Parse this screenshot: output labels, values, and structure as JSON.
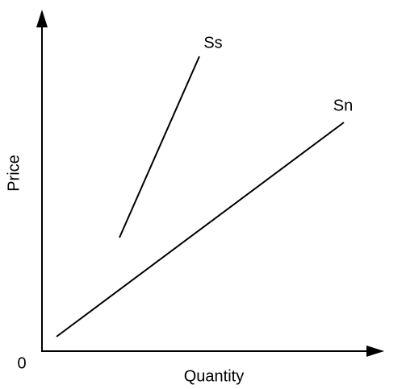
{
  "axes": {
    "x_label": "Quantity",
    "y_label": "Price",
    "origin": "0"
  },
  "curves": [
    {
      "label": "Ss"
    },
    {
      "label": "Sn"
    }
  ]
}
